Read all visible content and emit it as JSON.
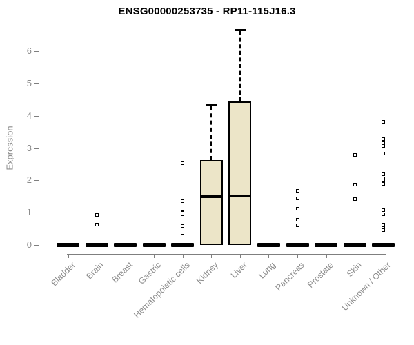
{
  "chart_data": {
    "type": "box",
    "title": "ENSG00000253735 - RP11-115J16.3",
    "ylabel": "Expression",
    "xlabel": "",
    "yticks": [
      0,
      1,
      2,
      3,
      4,
      5,
      6
    ],
    "ylim": [
      0,
      6.8
    ],
    "grid": false,
    "legend": "none",
    "categories": [
      "Bladder",
      "Brain",
      "Breast",
      "Gastric",
      "Hematopoietic cells",
      "Kidney",
      "Liver",
      "Lung",
      "Pancreas",
      "Prostate",
      "Skin",
      "Unknown / Other"
    ],
    "boxes": [
      {
        "category": "Bladder",
        "type": "flat",
        "median": 0,
        "outliers": []
      },
      {
        "category": "Brain",
        "type": "flat",
        "median": 0,
        "outliers": [
          0.92,
          0.64
        ]
      },
      {
        "category": "Breast",
        "type": "flat",
        "median": 0,
        "outliers": []
      },
      {
        "category": "Gastric",
        "type": "flat",
        "median": 0,
        "outliers": []
      },
      {
        "category": "Hematopoietic cells",
        "type": "flat",
        "median": 0,
        "outliers": [
          2.52,
          1.35,
          1.11,
          1.0,
          0.95,
          0.58,
          0.28
        ]
      },
      {
        "category": "Kidney",
        "type": "box",
        "q1": 0,
        "median": 1.49,
        "q3": 2.63,
        "whisker_low": 0,
        "whisker_high": 4.34,
        "outliers": []
      },
      {
        "category": "Liver",
        "type": "box",
        "q1": 0,
        "median": 1.51,
        "q3": 4.45,
        "whisker_low": 0,
        "whisker_high": 6.67,
        "outliers": []
      },
      {
        "category": "Lung",
        "type": "flat",
        "median": 0,
        "outliers": []
      },
      {
        "category": "Pancreas",
        "type": "flat",
        "median": 0,
        "outliers": [
          1.67,
          1.45,
          1.13,
          0.77,
          0.6
        ]
      },
      {
        "category": "Prostate",
        "type": "flat",
        "median": 0,
        "outliers": []
      },
      {
        "category": "Skin",
        "type": "flat",
        "median": 0,
        "outliers": [
          2.78,
          1.86,
          1.41
        ]
      },
      {
        "category": "Unknown / Other",
        "type": "flat",
        "median": 0,
        "outliers": [
          3.81,
          3.27,
          3.16,
          3.06,
          2.84,
          2.18,
          2.07,
          1.99,
          1.88,
          1.07,
          0.96,
          0.64,
          0.53,
          0.45
        ]
      }
    ],
    "colors": {
      "box_fill": "#ece5c8",
      "box_border": "#000000",
      "axis": "#7f7f7f",
      "tick_label": "#8c8c8c",
      "title": "#000000"
    }
  }
}
